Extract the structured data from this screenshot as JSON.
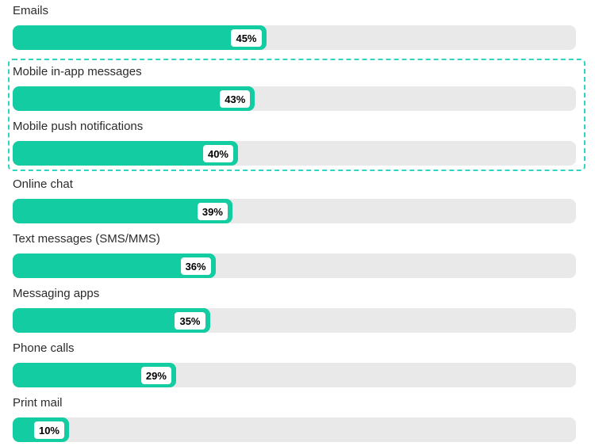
{
  "chart_data": {
    "type": "bar",
    "orientation": "horizontal",
    "title": "",
    "xlabel": "",
    "ylabel": "",
    "xlim": [
      0,
      100
    ],
    "grid": false,
    "legend": "none",
    "categories": [
      "Emails",
      "Mobile in-app messages",
      "Mobile push notifications",
      "Online chat",
      "Text messages (SMS/MMS)",
      "Messaging apps",
      "Phone calls",
      "Print mail"
    ],
    "values": [
      45,
      43,
      40,
      39,
      36,
      35,
      29,
      10
    ],
    "value_labels": [
      "45%",
      "43%",
      "40%",
      "39%",
      "36%",
      "35%",
      "29%",
      "10%"
    ],
    "highlighted_categories": [
      "Mobile in-app messages",
      "Mobile push notifications"
    ],
    "items": [
      {
        "label": "Emails",
        "value": 45,
        "value_label": "45%",
        "highlighted": false
      },
      {
        "label": "Mobile in-app messages",
        "value": 43,
        "value_label": "43%",
        "highlighted": true
      },
      {
        "label": "Mobile push notifications",
        "value": 40,
        "value_label": "40%",
        "highlighted": true
      },
      {
        "label": "Online chat",
        "value": 39,
        "value_label": "39%",
        "highlighted": false
      },
      {
        "label": "Text messages (SMS/MMS)",
        "value": 36,
        "value_label": "36%",
        "highlighted": false
      },
      {
        "label": "Messaging apps",
        "value": 35,
        "value_label": "35%",
        "highlighted": false
      },
      {
        "label": "Phone calls",
        "value": 29,
        "value_label": "29%",
        "highlighted": false
      },
      {
        "label": "Print mail",
        "value": 10,
        "value_label": "10%",
        "highlighted": false
      }
    ],
    "colors": {
      "bar_fill": "#14cca2",
      "bar_track": "#e9e9e9",
      "highlight_border": "#2ed5c0",
      "label_text": "#2c2c2c",
      "badge_bg": "#ffffff",
      "badge_text": "#000000"
    }
  }
}
